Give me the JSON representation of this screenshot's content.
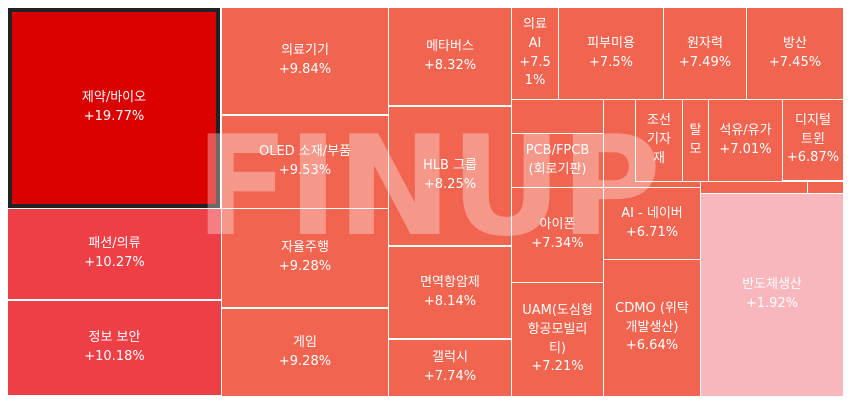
{
  "chart_data": {
    "type": "treemap",
    "watermark": "FINUP",
    "colors": {
      "deep_red": "#db0000",
      "red": "#ef3f46",
      "coral": "#f06450",
      "pink": "#f7b7bc",
      "selected_border": "#222222"
    },
    "items": [
      {
        "label": "제약/바이오",
        "change": "+19.77%",
        "value": 19.77,
        "selected": true
      },
      {
        "label": "패션/의류",
        "change": "+10.27%",
        "value": 10.27
      },
      {
        "label": "정보 보안",
        "change": "+10.18%",
        "value": 10.18
      },
      {
        "label": "의료기기",
        "change": "+9.84%",
        "value": 9.84
      },
      {
        "label": "OLED 소재/부품",
        "change": "+9.53%",
        "value": 9.53
      },
      {
        "label": "자율주행",
        "change": "+9.28%",
        "value": 9.28
      },
      {
        "label": "게임",
        "change": "+9.28%",
        "value": 9.28
      },
      {
        "label": "메타버스",
        "change": "+8.32%",
        "value": 8.32
      },
      {
        "label": "HLB 그룹",
        "change": "+8.25%",
        "value": 8.25
      },
      {
        "label": "면역항암제",
        "change": "+8.14%",
        "value": 8.14
      },
      {
        "label": "갤럭시",
        "change": "+7.74%",
        "value": 7.74
      },
      {
        "label": "의료\nAI",
        "change": "+7.5\n1%",
        "value": 7.51
      },
      {
        "label": "피부미용",
        "change": "+7.5%",
        "value": 7.5
      },
      {
        "label": "원자력",
        "change": "+7.49%",
        "value": 7.49
      },
      {
        "label": "방산",
        "change": "+7.45%",
        "value": 7.45
      },
      {
        "label": "PCB/FPCB\n(회로기판)",
        "change": "",
        "value": null
      },
      {
        "label": "조선\n기자\n재",
        "change": "",
        "value": null
      },
      {
        "label": "탈\n모",
        "change": "",
        "value": null
      },
      {
        "label": "석유/유가",
        "change": "+7.01%",
        "value": 7.01
      },
      {
        "label": "디지털\n트윈",
        "change": "+6.87%",
        "value": 6.87
      },
      {
        "label": "아이폰",
        "change": "+7.34%",
        "value": 7.34
      },
      {
        "label": "AI - 네이버",
        "change": "+6.71%",
        "value": 6.71
      },
      {
        "label": "UAM(도심형\n항공모빌리\n티)",
        "change": "+7.21%",
        "value": 7.21
      },
      {
        "label": "CDMO (위탁\n개발생산)",
        "change": "+6.64%",
        "value": 6.64
      },
      {
        "label": "반도체생산",
        "change": "+1.92%",
        "value": 1.92
      },
      {
        "label": "",
        "change": "",
        "value": null
      },
      {
        "label": "",
        "change": "",
        "value": null
      },
      {
        "label": "",
        "change": "",
        "value": null
      },
      {
        "label": "",
        "change": "",
        "value": null
      },
      {
        "label": "",
        "change": "",
        "value": null
      }
    ]
  }
}
